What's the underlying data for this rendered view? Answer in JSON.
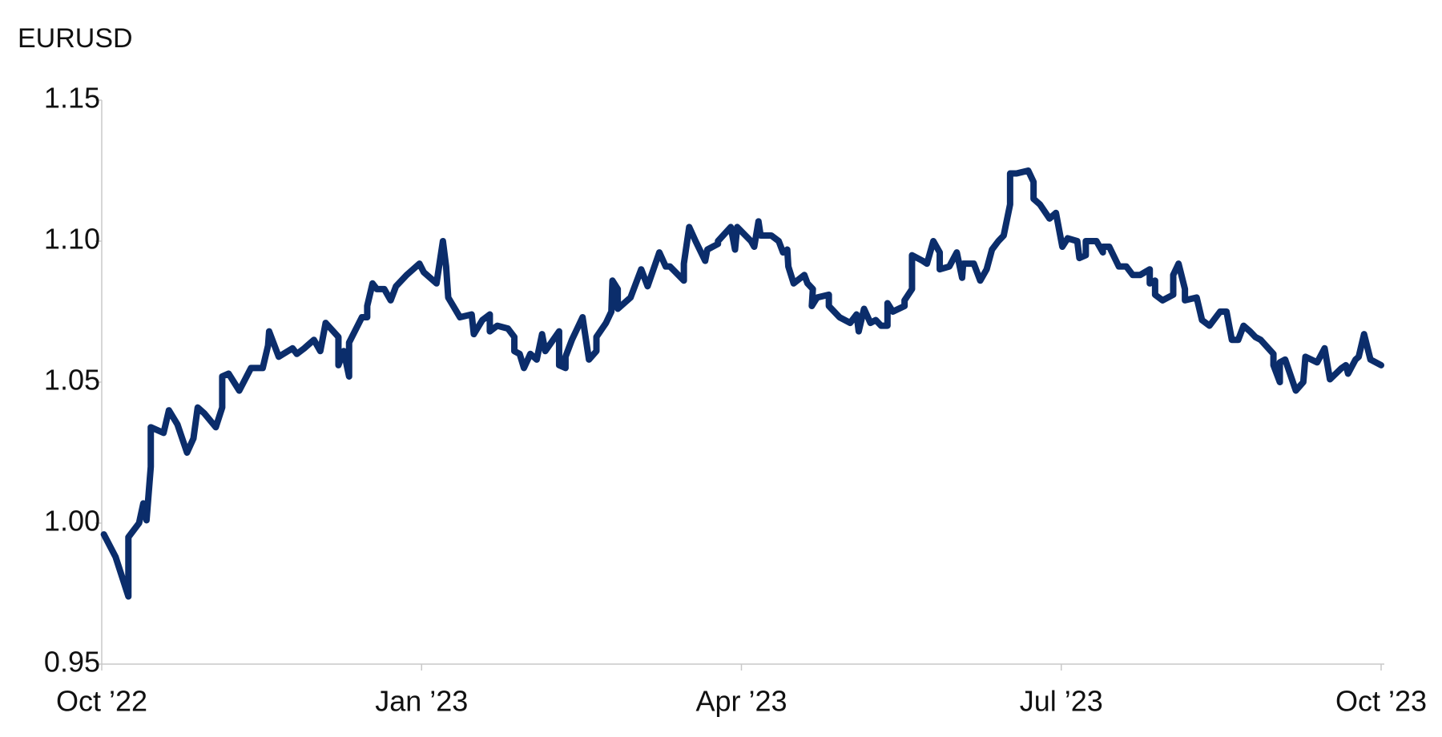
{
  "chart_data": {
    "type": "line",
    "title": "EURUSD",
    "xlim": [
      0,
      12
    ],
    "xticks": [
      {
        "value": 0,
        "label": "Oct ’22"
      },
      {
        "value": 3,
        "label": "Jan ’23"
      },
      {
        "value": 6,
        "label": "Apr ’23"
      },
      {
        "value": 9,
        "label": "Jul ’23"
      },
      {
        "value": 12,
        "label": "Oct ’23"
      }
    ],
    "ylim": [
      0.95,
      1.15
    ],
    "yticks": [
      0.95,
      {
        "value": 1,
        "label": "1.00"
      },
      1.05,
      {
        "value": 1.1,
        "label": "1.10"
      },
      1.15
    ],
    "grid": false,
    "x": [
      0.02,
      0.13,
      0.19,
      0.25,
      0.25,
      0.35,
      0.39,
      0.42,
      0.46,
      0.46,
      0.58,
      0.63,
      0.71,
      0.8,
      0.86,
      0.9,
      0.96,
      1.07,
      1.13,
      1.13,
      1.19,
      1.29,
      1.4,
      1.51,
      1.56,
      1.57,
      1.66,
      1.79,
      1.83,
      1.9,
      1.99,
      2.05,
      2.1,
      2.22,
      2.22,
      2.27,
      2.32,
      2.32,
      2.44,
      2.49,
      2.49,
      2.54,
      2.58,
      2.65,
      2.71,
      2.76,
      2.86,
      2.98,
      3.02,
      3.14,
      3.2,
      3.23,
      3.25,
      3.36,
      3.47,
      3.49,
      3.57,
      3.64,
      3.64,
      3.71,
      3.81,
      3.87,
      3.87,
      3.92,
      3.96,
      4.02,
      4.08,
      4.13,
      4.16,
      4.29,
      4.29,
      4.35,
      4.35,
      4.41,
      4.51,
      4.57,
      4.64,
      4.64,
      4.73,
      4.78,
      4.79,
      4.84,
      4.84,
      4.96,
      5.06,
      5.12,
      5.23,
      5.29,
      5.33,
      5.46,
      5.46,
      5.51,
      5.57,
      5.66,
      5.68,
      5.78,
      5.78,
      5.9,
      5.94,
      5.96,
      6.09,
      6.12,
      6.16,
      6.18,
      6.28,
      6.35,
      6.39,
      6.43,
      6.44,
      6.49,
      6.59,
      6.62,
      6.67,
      6.66,
      6.71,
      6.82,
      6.82,
      6.92,
      7.02,
      7.08,
      7.1,
      7.15,
      7.21,
      7.26,
      7.31,
      7.37,
      7.37,
      7.42,
      7.53,
      7.53,
      7.6,
      7.6,
      7.7,
      7.74,
      7.8,
      7.86,
      7.86,
      7.95,
      8.02,
      8.07,
      8.08,
      8.18,
      8.24,
      8.3,
      8.35,
      8.41,
      8.46,
      8.52,
      8.52,
      8.58,
      8.69,
      8.74,
      8.74,
      8.8,
      8.89,
      8.95,
      9.01,
      9.06,
      9.15,
      9.17,
      9.23,
      9.23,
      9.33,
      9.39,
      9.39,
      9.45,
      9.54,
      9.61,
      9.67,
      9.74,
      9.83,
      9.83,
      9.88,
      9.88,
      9.95,
      10.05,
      10.05,
      10.1,
      10.16,
      10.16,
      10.27,
      10.32,
      10.39,
      10.49,
      10.55,
      10.6,
      10.66,
      10.71,
      10.77,
      10.82,
      10.87,
      10.99,
      10.99,
      11.05,
      11.05,
      11.1,
      11.2,
      11.27,
      11.29,
      11.4,
      11.47,
      11.52,
      11.63,
      11.67,
      11.69,
      11.76,
      11.79,
      11.84,
      11.9,
      12.0
    ],
    "series": [
      {
        "name": "EURUSD",
        "color": "#0b2d6b",
        "values": [
          0.996,
          0.988,
          0.981,
          0.974,
          0.995,
          1.0,
          1.007,
          1.001,
          1.02,
          1.034,
          1.032,
          1.04,
          1.035,
          1.025,
          1.03,
          1.041,
          1.039,
          1.034,
          1.041,
          1.052,
          1.053,
          1.047,
          1.055,
          1.055,
          1.063,
          1.068,
          1.059,
          1.062,
          1.06,
          1.062,
          1.065,
          1.061,
          1.071,
          1.066,
          1.056,
          1.061,
          1.052,
          1.064,
          1.073,
          1.073,
          1.077,
          1.085,
          1.083,
          1.083,
          1.079,
          1.084,
          1.088,
          1.092,
          1.089,
          1.085,
          1.1,
          1.091,
          1.08,
          1.073,
          1.074,
          1.067,
          1.072,
          1.074,
          1.068,
          1.07,
          1.069,
          1.066,
          1.061,
          1.06,
          1.055,
          1.06,
          1.058,
          1.067,
          1.061,
          1.068,
          1.056,
          1.055,
          1.059,
          1.065,
          1.073,
          1.058,
          1.061,
          1.066,
          1.071,
          1.075,
          1.086,
          1.083,
          1.076,
          1.08,
          1.09,
          1.084,
          1.096,
          1.091,
          1.091,
          1.086,
          1.092,
          1.105,
          1.1,
          1.093,
          1.097,
          1.099,
          1.1,
          1.105,
          1.097,
          1.105,
          1.1,
          1.098,
          1.107,
          1.102,
          1.102,
          1.1,
          1.096,
          1.097,
          1.091,
          1.085,
          1.088,
          1.085,
          1.083,
          1.077,
          1.08,
          1.081,
          1.077,
          1.073,
          1.071,
          1.074,
          1.068,
          1.076,
          1.071,
          1.072,
          1.07,
          1.07,
          1.078,
          1.075,
          1.077,
          1.079,
          1.083,
          1.095,
          1.093,
          1.092,
          1.1,
          1.096,
          1.09,
          1.091,
          1.096,
          1.087,
          1.092,
          1.092,
          1.086,
          1.09,
          1.097,
          1.1,
          1.102,
          1.113,
          1.124,
          1.124,
          1.125,
          1.121,
          1.115,
          1.113,
          1.108,
          1.11,
          1.098,
          1.101,
          1.1,
          1.094,
          1.095,
          1.1,
          1.1,
          1.096,
          1.098,
          1.098,
          1.091,
          1.091,
          1.088,
          1.088,
          1.09,
          1.085,
          1.086,
          1.081,
          1.079,
          1.081,
          1.088,
          1.092,
          1.083,
          1.079,
          1.08,
          1.072,
          1.07,
          1.075,
          1.075,
          1.065,
          1.065,
          1.07,
          1.068,
          1.066,
          1.065,
          1.06,
          1.056,
          1.05,
          1.057,
          1.058,
          1.047,
          1.05,
          1.059,
          1.057,
          1.062,
          1.051,
          1.055,
          1.056,
          1.053,
          1.058,
          1.059,
          1.067,
          1.058,
          1.056
        ]
      }
    ]
  }
}
